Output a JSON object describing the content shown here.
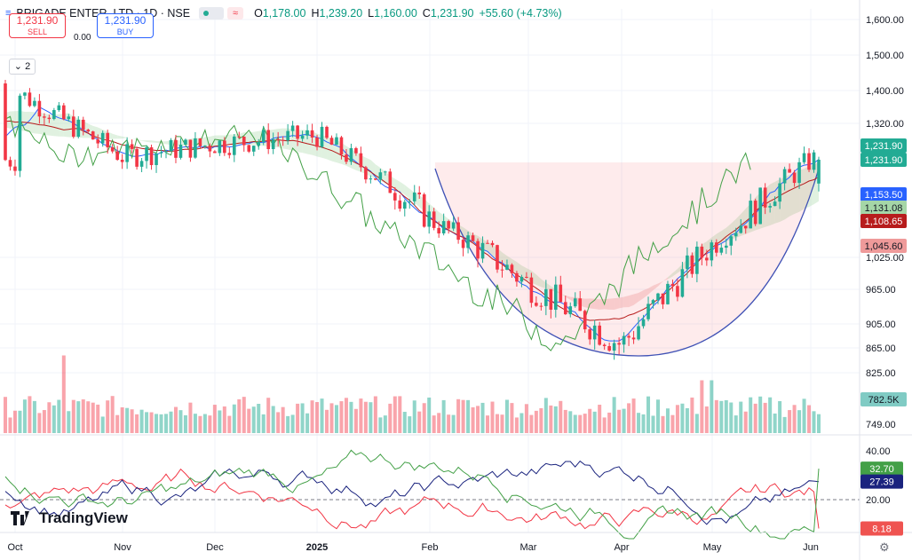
{
  "header": {
    "symbol": "BRIGADE ENTER. LTD · 1D · NSE",
    "open_label": "O",
    "open": "1,178.00",
    "high_label": "H",
    "high": "1,239.20",
    "low_label": "L",
    "low": "1,160.00",
    "close_label": "C",
    "close": "1,231.90",
    "change": "+55.60 (+4.73%)",
    "indicator_wave": "≈"
  },
  "trade": {
    "sell_price": "1,231.90",
    "sell_label": "SELL",
    "spread": "0.00",
    "buy_price": "1,231.90",
    "buy_label": "BUY"
  },
  "collapse_count": "2",
  "branding": {
    "name": "TradingView"
  },
  "icons": {
    "settings": "gear-icon",
    "logo": "tradingview-logo-icon"
  },
  "colors": {
    "up": "#22ab94",
    "down": "#f23645",
    "accent": "#2962ff",
    "cloud_green": "#a5d6a7",
    "cloud_red": "#ef9a9a"
  },
  "chart_data": {
    "type": "candlestick",
    "price_axis": {
      "ticks": [
        "1,600.00",
        "1,500.00",
        "1,400.00",
        "1,320.00",
        "1,025.00",
        "965.00",
        "905.00",
        "865.00",
        "825.00"
      ],
      "tick_values": [
        1600,
        1500,
        1400,
        1320,
        1025,
        965,
        905,
        865,
        825
      ]
    },
    "volume_axis": {
      "ticks": [
        "749.00"
      ]
    },
    "time_axis": {
      "labels": [
        "Oct",
        "Nov",
        "Dec",
        "2025",
        "Feb",
        "Mar",
        "Apr",
        "May",
        "Jun"
      ]
    },
    "price_labels": [
      {
        "text": "1,231.90",
        "value": 1231.9,
        "color": "#22ab94"
      },
      {
        "text": "1,231.90",
        "value": 1231.9,
        "color": "#22ab94"
      },
      {
        "text": "1,153.50",
        "value": 1153.5,
        "color": "#2962ff"
      },
      {
        "text": "1,131.08",
        "value": 1131.08,
        "color": "#a5d6a7"
      },
      {
        "text": "1,108.65",
        "value": 1108.65,
        "color": "#b71c1c"
      },
      {
        "text": "1,045.60",
        "value": 1045.6,
        "color": "#ef9a9a"
      },
      {
        "text": "782.5K",
        "value": 782.5,
        "color": "#80cbc4"
      }
    ],
    "oscillator": {
      "ticks": [
        "40.00",
        "20.00"
      ],
      "labels": [
        {
          "text": "32.70",
          "color": "#43a047"
        },
        {
          "text": "27.39",
          "color": "#1a237e"
        },
        {
          "text": "8.18",
          "color": "#ef5350"
        }
      ]
    },
    "key_closes": [
      {
        "date": "Oct",
        "close": 1400
      },
      {
        "date": "Nov",
        "close": 1240
      },
      {
        "date": "Dec",
        "close": 1270
      },
      {
        "date": "2025",
        "close": 1290
      },
      {
        "date": "Feb",
        "close": 1110
      },
      {
        "date": "Mar",
        "close": 975
      },
      {
        "date": "Apr",
        "close": 870
      },
      {
        "date": "May",
        "close": 1050
      },
      {
        "date": "Jun",
        "close": 1231.9
      }
    ]
  }
}
